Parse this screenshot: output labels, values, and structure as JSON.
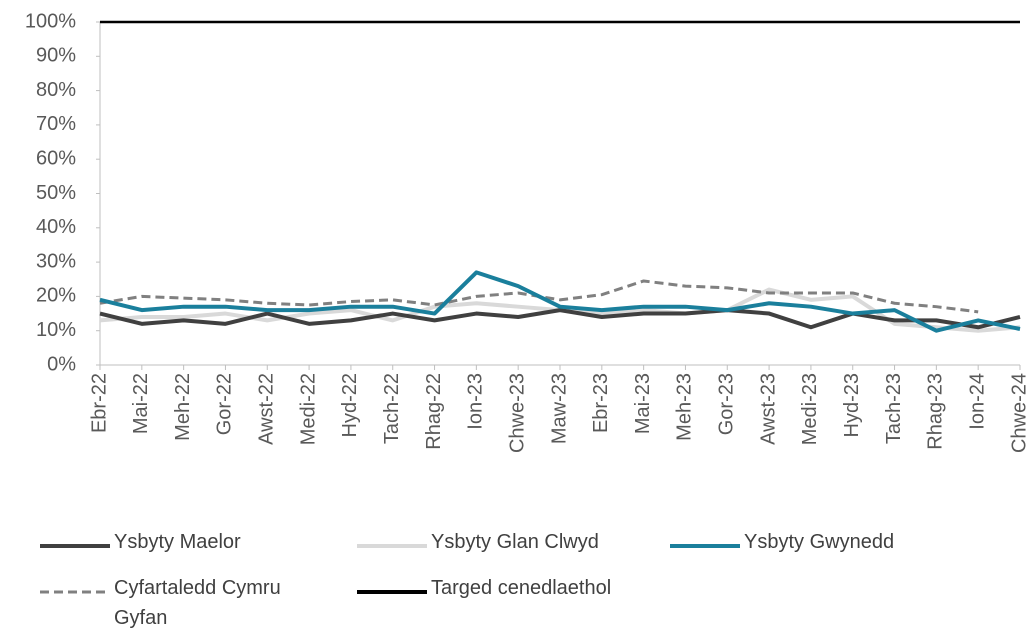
{
  "chart_data": {
    "type": "line",
    "categories": [
      "Ebr-22",
      "Mai-22",
      "Meh-22",
      "Gor-22",
      "Awst-22",
      "Medi-22",
      "Hyd-22",
      "Tach-22",
      "Rhag-22",
      "Ion-23",
      "Chwe-23",
      "Maw-23",
      "Ebr-23",
      "Mai-23",
      "Meh-23",
      "Gor-23",
      "Awst-23",
      "Medi-23",
      "Hyd-23",
      "Tach-23",
      "Rhag-23",
      "Ion-24",
      "Chwe-24"
    ],
    "series": [
      {
        "name": "Ysbyty Maelor",
        "color": "#404040",
        "values": [
          15,
          12,
          13,
          12,
          15,
          12,
          13,
          15,
          13,
          15,
          14,
          16,
          14,
          15,
          15,
          16,
          15,
          11,
          15,
          13,
          13,
          11,
          14
        ]
      },
      {
        "name": "Ysbyty Glan Clwyd",
        "color": "#d9d9d9",
        "values": [
          13,
          14,
          14,
          15,
          13,
          15,
          16,
          13,
          17,
          18,
          17,
          16,
          15,
          16,
          15,
          16,
          22,
          19,
          20,
          12,
          11,
          10,
          11
        ]
      },
      {
        "name": "Ysbyty Gwynedd",
        "color": "#1a7f9c",
        "values": [
          19,
          16,
          17,
          17,
          16,
          16,
          17,
          17,
          15,
          27,
          23,
          17,
          16,
          17,
          17,
          16,
          18,
          17,
          15,
          16,
          10,
          13,
          10.5
        ]
      },
      {
        "name": "Cyfartaledd Cymru Gyfan",
        "color": "#808080",
        "dashed": true,
        "values": [
          18,
          20,
          19.5,
          19,
          18,
          17.5,
          18.5,
          19,
          17.5,
          20,
          21,
          19,
          20.5,
          24.5,
          23,
          22.5,
          21,
          21,
          21,
          18,
          17,
          15.5,
          null
        ]
      },
      {
        "name": "Targed cenedlaethol",
        "color": "#000000",
        "values": [
          100,
          100,
          100,
          100,
          100,
          100,
          100,
          100,
          100,
          100,
          100,
          100,
          100,
          100,
          100,
          100,
          100,
          100,
          100,
          100,
          100,
          100,
          100
        ]
      }
    ],
    "ylim": [
      0,
      100
    ],
    "yticks": [
      {
        "value": 0,
        "label": "0%"
      },
      {
        "value": 10,
        "label": "10%"
      },
      {
        "value": 20,
        "label": "20%"
      },
      {
        "value": 30,
        "label": "30%"
      },
      {
        "value": 40,
        "label": "40%"
      },
      {
        "value": 50,
        "label": "50%"
      },
      {
        "value": 60,
        "label": "60%"
      },
      {
        "value": 70,
        "label": "70%"
      },
      {
        "value": 80,
        "label": "80%"
      },
      {
        "value": 90,
        "label": "90%"
      },
      {
        "value": 100,
        "label": "100%"
      }
    ],
    "grid": false
  }
}
